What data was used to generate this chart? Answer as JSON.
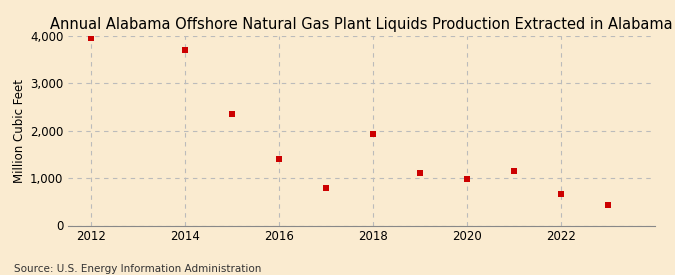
{
  "title": "Annual Alabama Offshore Natural Gas Plant Liquids Production Extracted in Alabama",
  "ylabel": "Million Cubic Feet",
  "source": "Source: U.S. Energy Information Administration",
  "years": [
    2012,
    2014,
    2015,
    2016,
    2017,
    2018,
    2019,
    2020,
    2021,
    2022,
    2023
  ],
  "values": [
    3960,
    3700,
    2350,
    1400,
    800,
    1920,
    1100,
    980,
    1150,
    670,
    430
  ],
  "xlim": [
    2011.5,
    2024.0
  ],
  "ylim": [
    0,
    4000
  ],
  "xticks": [
    2012,
    2014,
    2016,
    2018,
    2020,
    2022
  ],
  "yticks": [
    0,
    1000,
    2000,
    3000,
    4000
  ],
  "marker_color": "#cc0000",
  "marker": "s",
  "marker_size": 18,
  "background_color": "#faebd0",
  "grid_color": "#bbbbbb",
  "title_fontsize": 10.5,
  "axis_label_fontsize": 8.5,
  "tick_fontsize": 8.5,
  "source_fontsize": 7.5
}
